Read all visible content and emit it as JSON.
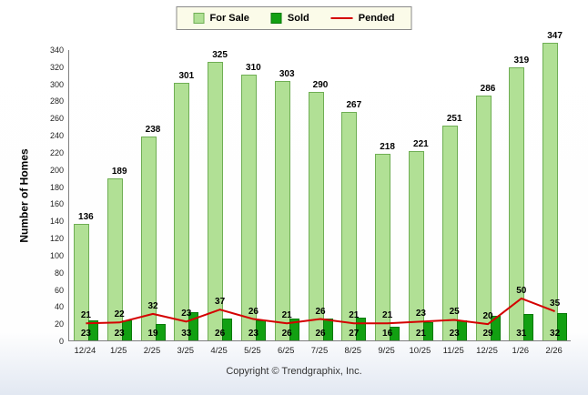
{
  "legend": {
    "items": [
      {
        "label": "For Sale",
        "swatch": "bar",
        "color": "#b1e095",
        "border": "#6fae54"
      },
      {
        "label": "Sold",
        "swatch": "bar",
        "color": "#12a012",
        "border": "#0a7a0a"
      },
      {
        "label": "Pended",
        "swatch": "line",
        "color": "#d40000"
      }
    ]
  },
  "footer": {
    "copyright": "Copyright © Trendgraphix, Inc."
  },
  "chart_data": {
    "type": "bar",
    "title": "",
    "ylabel": "Number of Homes",
    "xlabel": "",
    "ylim": [
      0,
      340
    ],
    "ytick_step": 20,
    "grid": false,
    "legend_position": "top-center",
    "categories": [
      "12/24",
      "1/25",
      "2/25",
      "3/25",
      "4/25",
      "5/25",
      "6/25",
      "7/25",
      "8/25",
      "9/25",
      "10/25",
      "11/25",
      "12/25",
      "1/26",
      "2/26"
    ],
    "series": [
      {
        "name": "For Sale",
        "type": "bar",
        "color": "#b1e095",
        "border": "#6fae54",
        "values": [
          136,
          189,
          238,
          301,
          325,
          310,
          303,
          290,
          267,
          218,
          221,
          251,
          286,
          319,
          347
        ]
      },
      {
        "name": "Sold",
        "type": "bar",
        "color": "#12a012",
        "border": "#0a7a0a",
        "values": [
          23,
          23,
          19,
          33,
          26,
          23,
          26,
          26,
          27,
          16,
          21,
          23,
          29,
          31,
          32
        ]
      },
      {
        "name": "Pended",
        "type": "line",
        "color": "#d40000",
        "values": [
          21,
          22,
          32,
          23,
          37,
          26,
          21,
          26,
          21,
          21,
          23,
          25,
          20,
          50,
          35
        ]
      }
    ]
  }
}
